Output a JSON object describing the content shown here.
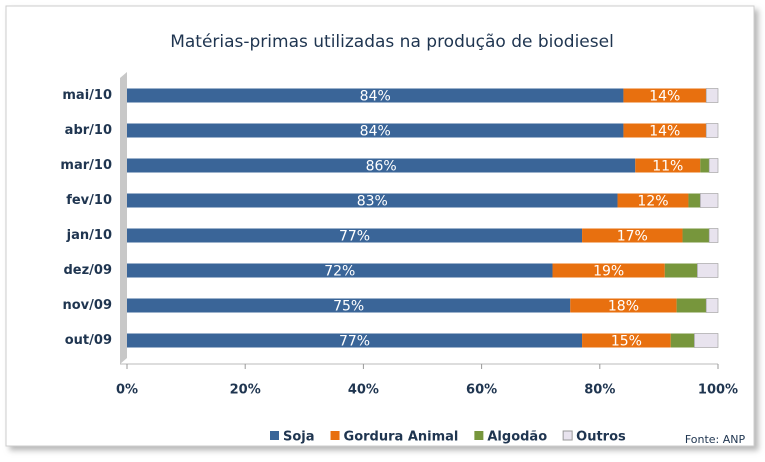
{
  "chart_data": {
    "type": "bar",
    "orientation": "horizontal",
    "stacked": true,
    "title": "Matérias-primas utilizadas na produção de biodiesel",
    "annotation": "Fonte: ANP",
    "categories": [
      "mai/10",
      "abr/10",
      "mar/10",
      "fev/10",
      "jan/10",
      "dez/09",
      "nov/09",
      "out/09"
    ],
    "series": [
      {
        "name": "Soja",
        "color": "#3a6598",
        "values": [
          84,
          84,
          86,
          83,
          77,
          72,
          75,
          77
        ],
        "value_labels": [
          "84%",
          "84%",
          "86%",
          "83%",
          "77%",
          "72%",
          "75%",
          "77%"
        ]
      },
      {
        "name": "Gordura Animal",
        "color": "#e8700f",
        "values": [
          14,
          14,
          11,
          12,
          17,
          19,
          18,
          15
        ],
        "value_labels": [
          "14%",
          "14%",
          "11%",
          "12%",
          "17%",
          "19%",
          "18%",
          "15%"
        ]
      },
      {
        "name": "Algodão",
        "color": "#77963c",
        "values": [
          0,
          0,
          1.5,
          2,
          4.5,
          5.5,
          5,
          4
        ]
      },
      {
        "name": "Outros",
        "color": "#e8e3ee",
        "values": [
          2,
          2,
          1.5,
          3,
          1.5,
          3.5,
          2,
          4
        ]
      }
    ],
    "xlim": [
      0,
      100
    ],
    "xticks": [
      {
        "value": 0,
        "label": "0%"
      },
      {
        "value": 20,
        "label": "20%"
      },
      {
        "value": 40,
        "label": "40%"
      },
      {
        "value": 60,
        "label": "60%"
      },
      {
        "value": 80,
        "label": "80%"
      },
      {
        "value": 100,
        "label": "100%"
      }
    ],
    "legend": "bottom"
  }
}
